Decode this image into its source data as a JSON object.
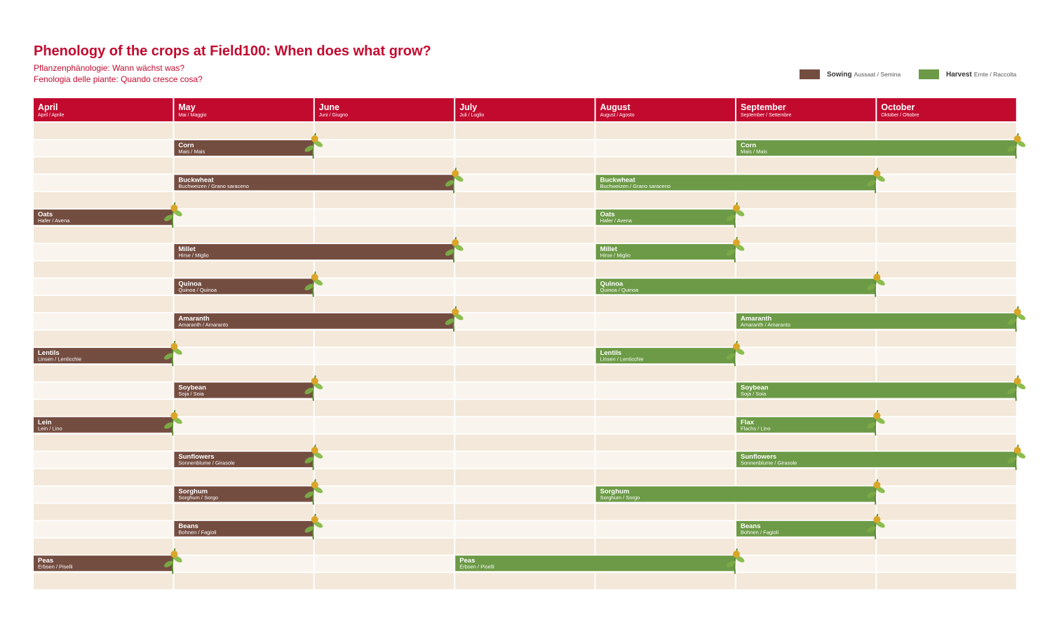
{
  "header": {
    "title": "Phenology of the crops at Field100: When does what grow?",
    "subtitle_de": "Pflanzenphänologie: Wann wächst was?",
    "subtitle_it": "Fenologia delle piante: Quando cresce cosa?"
  },
  "legend": {
    "sowing_label": "Sowing",
    "sowing_sub": "Aussaat / Semina",
    "harvest_label": "Harvest",
    "harvest_sub": "Ernte / Raccolta"
  },
  "colors": {
    "header_red": "#c20a2f",
    "sowing": "#744d41",
    "harvest": "#6c9a46",
    "row_band_dark": "#f3e8d9",
    "row_band_light": "#f9f4ed"
  },
  "chart_data": {
    "type": "gantt",
    "months": [
      {
        "name": "April",
        "sub": "April / Aprile"
      },
      {
        "name": "May",
        "sub": "Mai / Maggio"
      },
      {
        "name": "June",
        "sub": "Juni / Giugno"
      },
      {
        "name": "July",
        "sub": "Juli / Luglio"
      },
      {
        "name": "August",
        "sub": "August / Agosto"
      },
      {
        "name": "September",
        "sub": "September / Settembre"
      },
      {
        "name": "October",
        "sub": "Oktober / Ottobre"
      }
    ],
    "crops": [
      {
        "name": "Corn",
        "sub": "Mais / Mais",
        "icon": "corn-icon",
        "sowing": [
          1,
          2
        ],
        "harvest": [
          5,
          7
        ]
      },
      {
        "name": "Buckwheat",
        "sub": "Buchweizen / Grano saraceno",
        "icon": "buckwheat-icon",
        "sowing": [
          1,
          3
        ],
        "harvest": [
          4,
          6
        ]
      },
      {
        "name": "Oats",
        "sub": "Hafer / Avena",
        "icon": "oats-icon",
        "sowing": [
          0,
          1
        ],
        "harvest": [
          4,
          5
        ]
      },
      {
        "name": "Millet",
        "sub": "Hirse / Miglio",
        "icon": "millet-icon",
        "sowing": [
          1,
          3
        ],
        "harvest": [
          4,
          5
        ]
      },
      {
        "name": "Quinoa",
        "sub": "Quinoa / Quinoa",
        "icon": "quinoa-icon",
        "sowing": [
          1,
          2
        ],
        "harvest": [
          4,
          6
        ]
      },
      {
        "name": "Amaranth",
        "sub": "Amaranth / Amaranto",
        "icon": "amaranth-icon",
        "sowing": [
          1,
          3
        ],
        "harvest": [
          5,
          7
        ]
      },
      {
        "name": "Lentils",
        "sub": "Linsen / Lenticchie",
        "icon": "lentils-icon",
        "sowing": [
          0,
          1
        ],
        "harvest": [
          4,
          5
        ]
      },
      {
        "name": "Soybean",
        "sub": "Soja / Soia",
        "icon": "soybean-icon",
        "sowing": [
          1,
          2
        ],
        "harvest": [
          5,
          7
        ]
      },
      {
        "name": "Lein",
        "sub": "Lein / Lino",
        "harvest_name": "Flax",
        "harvest_sub": "Flachs / Lino",
        "icon": "flax-icon",
        "sowing": [
          0,
          1
        ],
        "harvest": [
          5,
          6
        ]
      },
      {
        "name": "Sunflowers",
        "sub": "Sonnenblume / Girasole",
        "icon": "sunflower-icon",
        "sowing": [
          1,
          2
        ],
        "harvest": [
          5,
          7
        ]
      },
      {
        "name": "Sorghum",
        "sub": "Sorghum / Sorgo",
        "icon": "sorghum-icon",
        "sowing": [
          1,
          2
        ],
        "harvest": [
          4,
          6
        ]
      },
      {
        "name": "Beans",
        "sub": "Bohnen / Fagioli",
        "icon": "beans-icon",
        "sowing": [
          1,
          2
        ],
        "harvest": [
          5,
          6
        ]
      },
      {
        "name": "Peas",
        "sub": "Erbsen / Piselli",
        "icon": "peas-icon",
        "sowing": [
          0,
          1
        ],
        "harvest": [
          3,
          5
        ]
      }
    ]
  }
}
